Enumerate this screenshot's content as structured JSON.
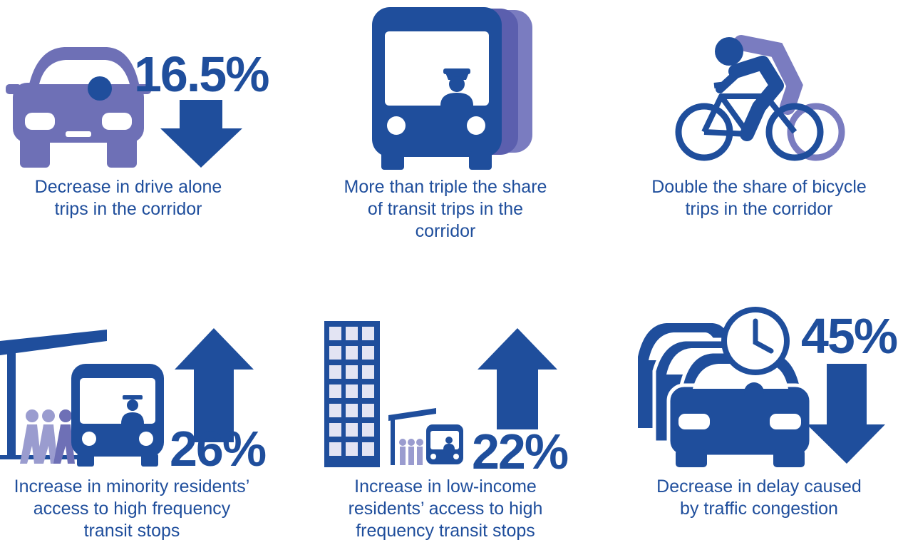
{
  "items": [
    {
      "stat": "16.5%",
      "caption": [
        "Decrease in drive alone",
        "trips in the corridor"
      ]
    },
    {
      "caption": [
        "More than triple the share",
        "of transit trips in the",
        "corridor"
      ]
    },
    {
      "caption": [
        "Double the share of bicycle",
        "trips in the corridor"
      ]
    },
    {
      "stat": "26%",
      "caption": [
        "Increase in minority residents’",
        "access to high frequency",
        "transit stops"
      ]
    },
    {
      "caption": [
        "Increase in low-income",
        "residents’ access to high",
        "frequency transit stops"
      ],
      "stat": "22%"
    },
    {
      "stat": "45%",
      "caption": [
        "Decrease in delay caused",
        "by traffic congestion"
      ]
    }
  ]
}
